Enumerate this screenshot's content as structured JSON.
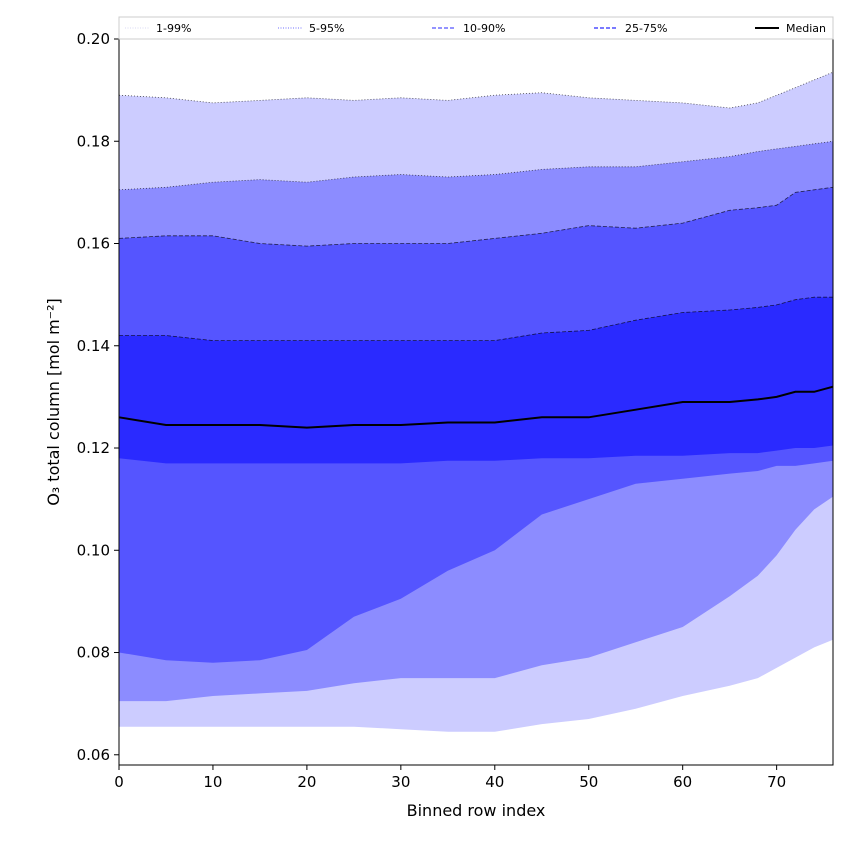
{
  "chart_data": {
    "type": "area",
    "xlabel": "Binned row index",
    "ylabel": "O₃ total column [mol m⁻²]",
    "xlim": [
      0,
      76
    ],
    "ylim": [
      0.058,
      0.2
    ],
    "x_ticks": [
      "0",
      "10",
      "20",
      "30",
      "40",
      "50",
      "60",
      "70"
    ],
    "y_ticks": [
      "0.06",
      "0.08",
      "0.10",
      "0.12",
      "0.14",
      "0.16",
      "0.18",
      "0.20"
    ],
    "grid": false,
    "legend_position": "top, outside the plot (single row)",
    "legend": [
      {
        "label": "1-99%",
        "color": "#ccccff",
        "style": "dotted"
      },
      {
        "label": "5-95%",
        "color": "#8c8cff",
        "style": "dotted"
      },
      {
        "label": "10-90%",
        "color": "#5555ff",
        "style": "dashed"
      },
      {
        "label": "25-75%",
        "color": "#2a2aff",
        "style": "dashed"
      },
      {
        "label": "Median",
        "color": "#000000",
        "style": "solid"
      }
    ],
    "x": [
      0,
      5,
      10,
      15,
      20,
      25,
      30,
      35,
      40,
      45,
      50,
      55,
      60,
      65,
      68,
      70,
      72,
      74,
      76
    ],
    "bands": [
      {
        "name": "1-99%",
        "color": "#ccccff",
        "lower": [
          0.0655,
          0.0655,
          0.0655,
          0.0655,
          0.0655,
          0.0655,
          0.065,
          0.0645,
          0.0645,
          0.066,
          0.067,
          0.069,
          0.0715,
          0.0735,
          0.075,
          0.077,
          0.079,
          0.081,
          0.0825
        ],
        "upper": [
          0.189,
          0.1885,
          0.1875,
          0.188,
          0.1885,
          0.188,
          0.1885,
          0.188,
          0.189,
          0.1895,
          0.1885,
          0.188,
          0.1875,
          0.1865,
          0.1875,
          0.189,
          0.1905,
          0.192,
          0.1935
        ]
      },
      {
        "name": "5-95%",
        "color": "#8c8cff",
        "lower": [
          0.0705,
          0.0705,
          0.0715,
          0.072,
          0.0725,
          0.074,
          0.075,
          0.075,
          0.075,
          0.0775,
          0.079,
          0.082,
          0.085,
          0.091,
          0.095,
          0.099,
          0.104,
          0.108,
          0.1105
        ],
        "upper": [
          0.1705,
          0.171,
          0.172,
          0.1725,
          0.172,
          0.173,
          0.1735,
          0.173,
          0.1735,
          0.1745,
          0.175,
          0.175,
          0.176,
          0.177,
          0.178,
          0.1785,
          0.179,
          0.1795,
          0.18
        ]
      },
      {
        "name": "10-90%",
        "color": "#5555ff",
        "lower": [
          0.08,
          0.0785,
          0.078,
          0.0785,
          0.0805,
          0.087,
          0.0905,
          0.096,
          0.1,
          0.107,
          0.11,
          0.113,
          0.114,
          0.115,
          0.1155,
          0.1165,
          0.1165,
          0.117,
          0.1175
        ],
        "upper": [
          0.161,
          0.1615,
          0.1615,
          0.16,
          0.1595,
          0.16,
          0.16,
          0.16,
          0.161,
          0.162,
          0.1635,
          0.163,
          0.164,
          0.1665,
          0.167,
          0.1675,
          0.17,
          0.1705,
          0.171
        ]
      },
      {
        "name": "25-75%",
        "color": "#2a2aff",
        "lower": [
          0.118,
          0.117,
          0.117,
          0.117,
          0.117,
          0.117,
          0.117,
          0.1175,
          0.1175,
          0.118,
          0.118,
          0.1185,
          0.1185,
          0.119,
          0.119,
          0.1195,
          0.12,
          0.12,
          0.1205
        ],
        "upper": [
          0.142,
          0.142,
          0.141,
          0.141,
          0.141,
          0.141,
          0.141,
          0.141,
          0.141,
          0.1425,
          0.143,
          0.145,
          0.1465,
          0.147,
          0.1475,
          0.148,
          0.149,
          0.1495,
          0.1495
        ]
      }
    ],
    "median": {
      "name": "Median",
      "color": "#000000",
      "values": [
        0.126,
        0.1245,
        0.1245,
        0.1245,
        0.124,
        0.1245,
        0.1245,
        0.125,
        0.125,
        0.126,
        0.126,
        0.1275,
        0.129,
        0.129,
        0.1295,
        0.13,
        0.131,
        0.131,
        0.132
      ]
    }
  }
}
